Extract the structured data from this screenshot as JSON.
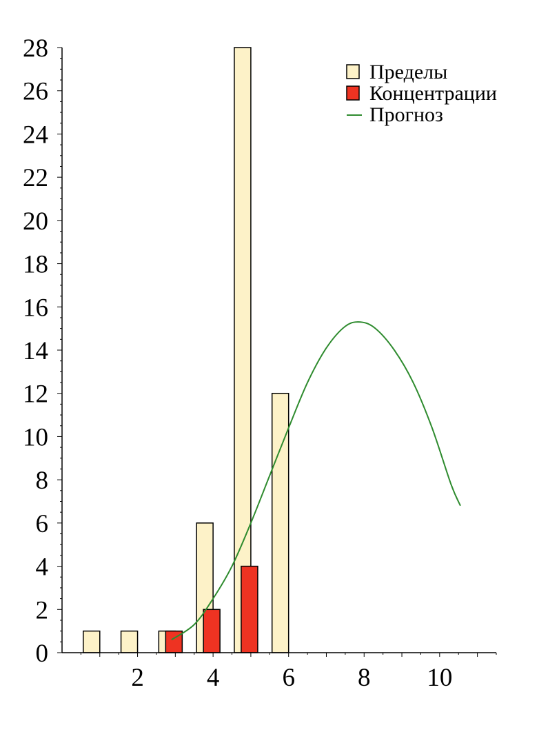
{
  "chart_data": {
    "type": "bar",
    "title": "",
    "xlabel": "",
    "ylabel": "",
    "xlim": [
      0,
      11.5
    ],
    "ylim": [
      0,
      28
    ],
    "x_ticks": [
      2,
      4,
      6,
      8,
      10
    ],
    "y_ticks": [
      0,
      2,
      4,
      6,
      8,
      10,
      12,
      14,
      16,
      18,
      20,
      22,
      24,
      26,
      28
    ],
    "series": [
      {
        "name": "Пределы",
        "kind": "bar",
        "color": "#fdf2c8",
        "points": [
          {
            "x": 1,
            "y": 1
          },
          {
            "x": 2,
            "y": 1
          },
          {
            "x": 3,
            "y": 1
          },
          {
            "x": 4,
            "y": 6
          },
          {
            "x": 5,
            "y": 28
          },
          {
            "x": 6,
            "y": 12
          }
        ]
      },
      {
        "name": "Концентрации",
        "kind": "bar",
        "color": "#ee3322",
        "points": [
          {
            "x": 3,
            "y": 1
          },
          {
            "x": 4,
            "y": 2
          },
          {
            "x": 5,
            "y": 4
          }
        ]
      },
      {
        "name": "Прогноз",
        "kind": "line",
        "color": "#2e8b2e",
        "points": [
          {
            "x": 2.9,
            "y": 0.6
          },
          {
            "x": 3.5,
            "y": 1.3
          },
          {
            "x": 4.0,
            "y": 2.5
          },
          {
            "x": 4.5,
            "y": 4.0
          },
          {
            "x": 5.0,
            "y": 6.0
          },
          {
            "x": 5.5,
            "y": 8.2
          },
          {
            "x": 6.0,
            "y": 10.4
          },
          {
            "x": 6.5,
            "y": 12.5
          },
          {
            "x": 7.0,
            "y": 14.1
          },
          {
            "x": 7.5,
            "y": 15.1
          },
          {
            "x": 7.9,
            "y": 15.3
          },
          {
            "x": 8.3,
            "y": 15.0
          },
          {
            "x": 8.8,
            "y": 14.0
          },
          {
            "x": 9.3,
            "y": 12.5
          },
          {
            "x": 9.8,
            "y": 10.4
          },
          {
            "x": 10.3,
            "y": 7.8
          },
          {
            "x": 10.55,
            "y": 6.8
          }
        ]
      }
    ],
    "legend": {
      "placement": "top-right",
      "items": [
        {
          "label": "Пределы",
          "symbol": "box",
          "color": "#fdf2c8"
        },
        {
          "label": "Концентрации",
          "symbol": "box",
          "color": "#ee3322"
        },
        {
          "label": "Прогноз",
          "symbol": "line",
          "color": "#2e8b2e"
        }
      ]
    },
    "grid": false
  }
}
